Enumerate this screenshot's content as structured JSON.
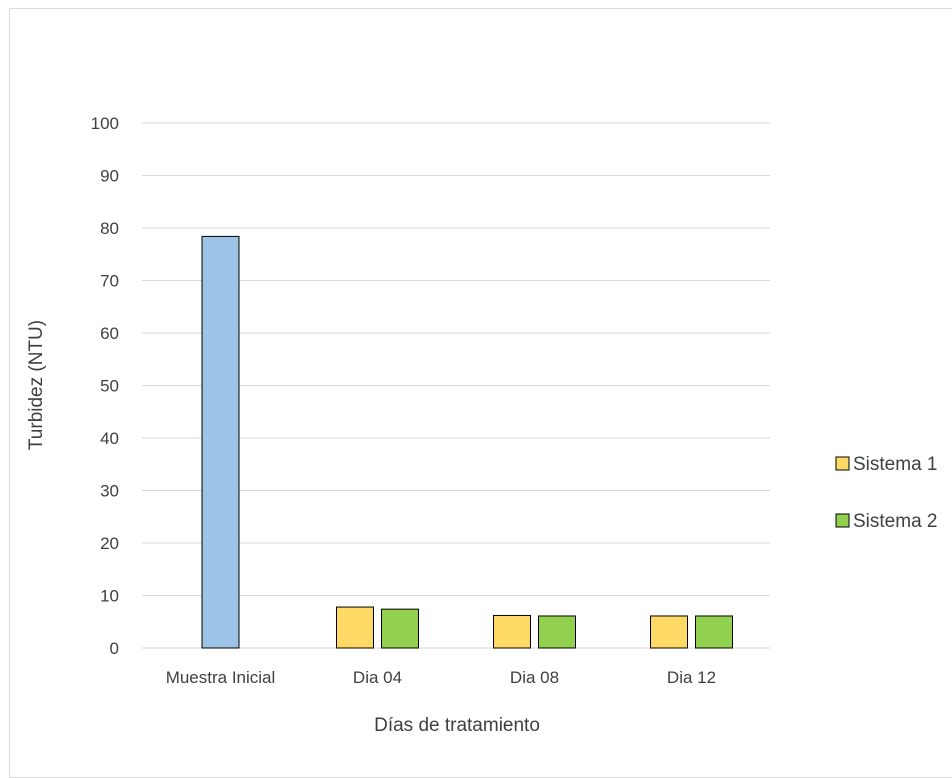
{
  "chart_data": {
    "type": "bar",
    "title": "",
    "xlabel": "Días de tratamiento",
    "ylabel": "Turbidez (NTU)",
    "ylim": [
      0,
      100
    ],
    "yticks": [
      0,
      10,
      20,
      30,
      40,
      50,
      60,
      70,
      80,
      90,
      100
    ],
    "grid": true,
    "legend_position": "right",
    "categories": [
      "Muestra Inicial",
      "Dia 04",
      "Dia 08",
      "Dia 12"
    ],
    "series": [
      {
        "name": "",
        "color": "#9dc3e6",
        "values": [
          78.4,
          null,
          null,
          null
        ],
        "in_legend": false
      },
      {
        "name": "Sistema 1",
        "color": "#ffd966",
        "values": [
          null,
          7.8,
          6.2,
          6.1
        ],
        "in_legend": true
      },
      {
        "name": "Sistema 2",
        "color": "#92d050",
        "values": [
          null,
          7.4,
          6.1,
          6.1
        ],
        "in_legend": true
      }
    ]
  }
}
